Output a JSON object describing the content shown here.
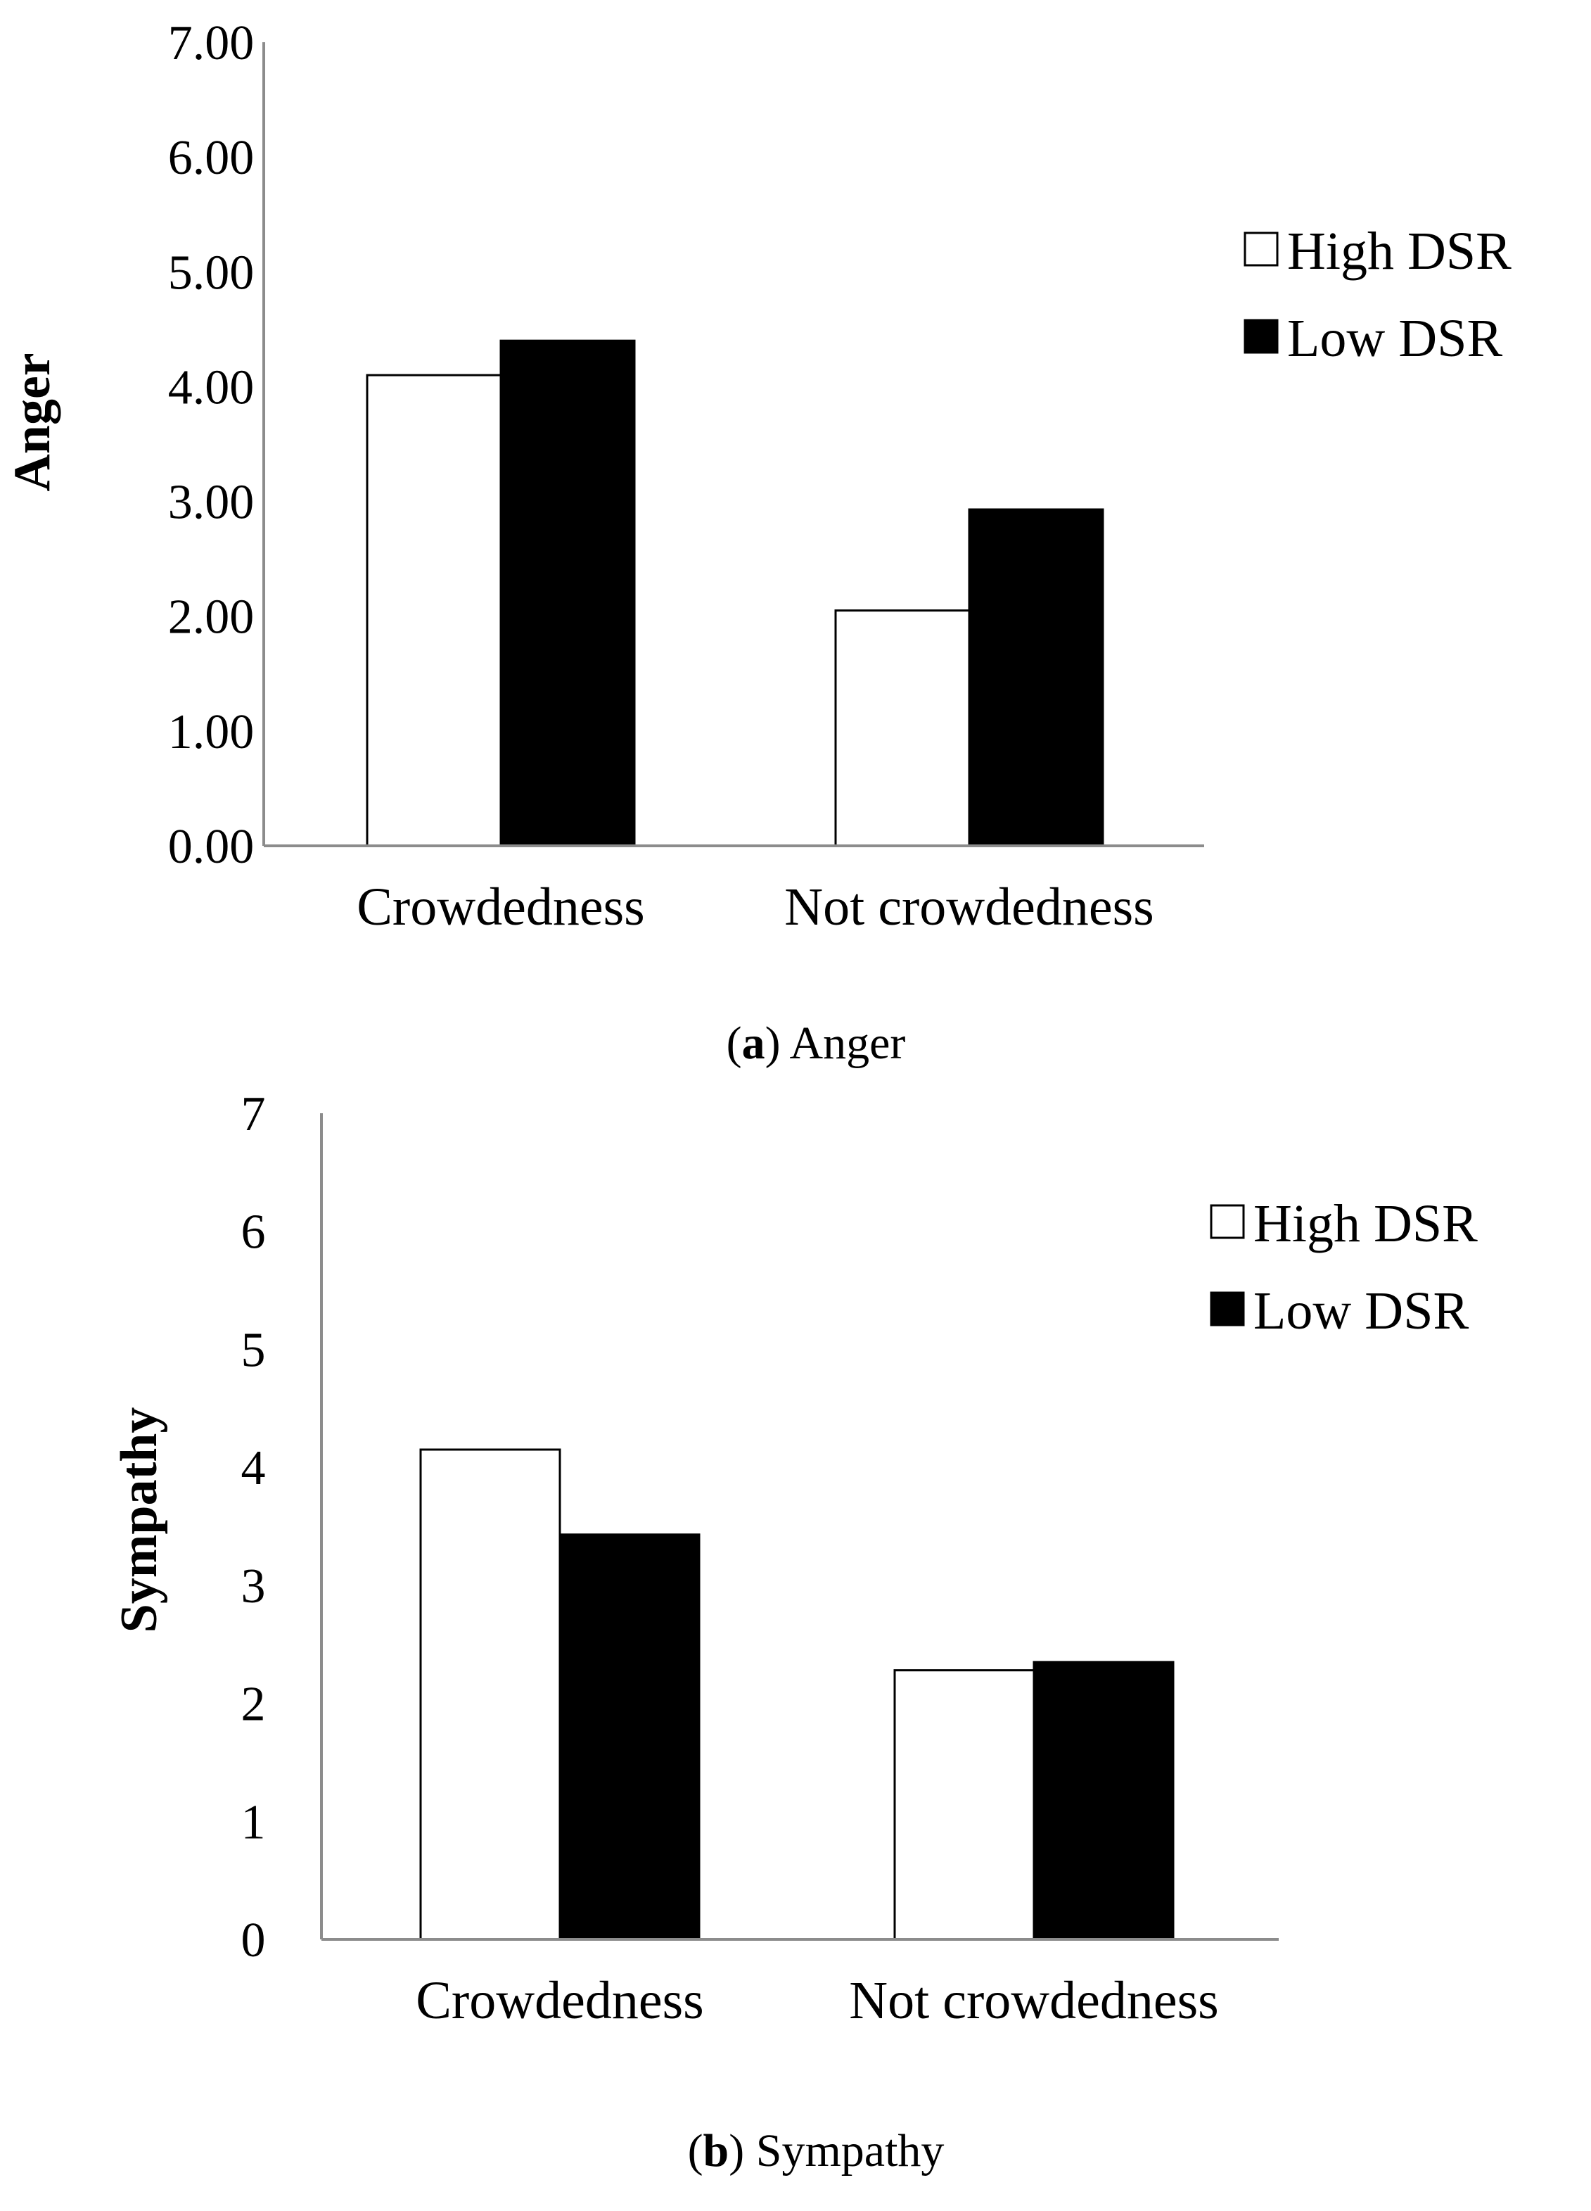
{
  "chart_data": [
    {
      "type": "bar",
      "panel_label": "a",
      "caption_text": "Anger",
      "ylabel": "Anger",
      "xlabel": "",
      "categories": [
        "Crowdedness",
        "Not crowdedness"
      ],
      "ylim": [
        0,
        7
      ],
      "yticks": [
        "0.00",
        "1.00",
        "2.00",
        "3.00",
        "4.00",
        "5.00",
        "6.00",
        "7.00"
      ],
      "legend_position": "top-right",
      "series": [
        {
          "name": "High DSR",
          "values": [
            4.1,
            2.05
          ],
          "fill": "#ffffff"
        },
        {
          "name": "Low DSR",
          "values": [
            4.4,
            2.93
          ],
          "fill": "#000000"
        }
      ]
    },
    {
      "type": "bar",
      "panel_label": "b",
      "caption_text": "Sympathy",
      "ylabel": "Sympathy",
      "xlabel": "",
      "categories": [
        "Crowdedness",
        "Not crowdedness"
      ],
      "ylim": [
        0,
        7
      ],
      "yticks": [
        "0",
        "1",
        "2",
        "3",
        "4",
        "5",
        "6",
        "7"
      ],
      "legend_position": "top-right",
      "series": [
        {
          "name": "High DSR",
          "values": [
            4.15,
            2.28
          ],
          "fill": "#ffffff"
        },
        {
          "name": "Low DSR",
          "values": [
            3.43,
            2.35
          ],
          "fill": "#000000"
        }
      ]
    }
  ],
  "colors": {
    "axis": "#8c8c8c",
    "bar_stroke": "#000000"
  }
}
